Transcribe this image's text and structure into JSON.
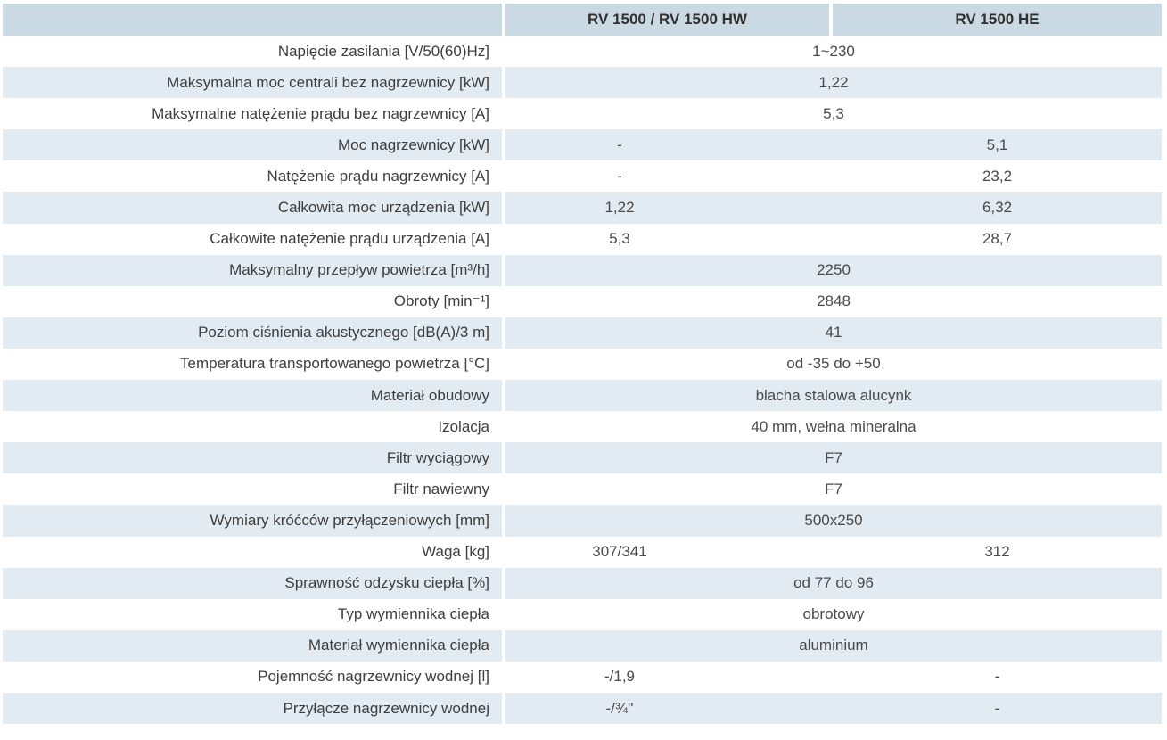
{
  "colors": {
    "header_bg": "#cadae2",
    "stripe_bg": "#e2ebf1",
    "row_bg": "#ffffff",
    "header_text": "#303030",
    "label_text": "#3e3e3e",
    "value_text": "#4a4a4a"
  },
  "table": {
    "header": {
      "model_a": "RV 1500 / RV 1500 HW",
      "model_b": "RV 1500 HE"
    },
    "rows": [
      {
        "label": "Napięcie zasilania [V/50(60)Hz]",
        "merged": "1~230"
      },
      {
        "label": "Maksymalna moc centrali bez nagrzewnicy [kW]",
        "merged": "1,22"
      },
      {
        "label": "Maksymalne natężenie prądu bez nagrzewnicy [A]",
        "merged": "5,3"
      },
      {
        "label": "Moc nagrzewnicy [kW]",
        "col1": "-",
        "col2": "5,1"
      },
      {
        "label": "Natężenie prądu nagrzewnicy [A]",
        "col1": "-",
        "col2": "23,2"
      },
      {
        "label": "Całkowita moc urządzenia [kW]",
        "col1": "1,22",
        "col2": "6,32"
      },
      {
        "label": "Całkowite natężenie prądu urządzenia [A]",
        "col1": "5,3",
        "col2": "28,7"
      },
      {
        "label": "Maksymalny przepływ powietrza [m³/h]",
        "merged": "2250"
      },
      {
        "label": "Obroty [min⁻¹]",
        "merged": "2848"
      },
      {
        "label": "Poziom ciśnienia akustycznego [dB(A)/3 m]",
        "merged": "41"
      },
      {
        "label": "Temperatura transportowanego powietrza [°C]",
        "merged": "od -35 do +50"
      },
      {
        "label": "Materiał obudowy",
        "merged": "blacha stalowa alucynk"
      },
      {
        "label": "Izolacja",
        "merged": "40 mm, wełna mineralna"
      },
      {
        "label": "Filtr wyciągowy",
        "merged": "F7"
      },
      {
        "label": "Filtr nawiewny",
        "merged": "F7"
      },
      {
        "label": "Wymiary króćców przyłączeniowych [mm]",
        "merged": "500x250"
      },
      {
        "label": "Waga [kg]",
        "col1": "307/341",
        "col2": "312"
      },
      {
        "label": "Sprawność odzysku ciepła [%]",
        "merged": "od 77 do 96"
      },
      {
        "label": "Typ wymiennika ciepła",
        "merged": "obrotowy"
      },
      {
        "label": "Materiał wymiennika ciepła",
        "merged": "aluminium"
      },
      {
        "label": "Pojemność nagrzewnicy wodnej [l]",
        "col1": "-/1,9",
        "col2": "-"
      },
      {
        "label": "Przyłącze nagrzewnicy wodnej",
        "col1": "-/¾''",
        "col2": "-"
      }
    ]
  }
}
